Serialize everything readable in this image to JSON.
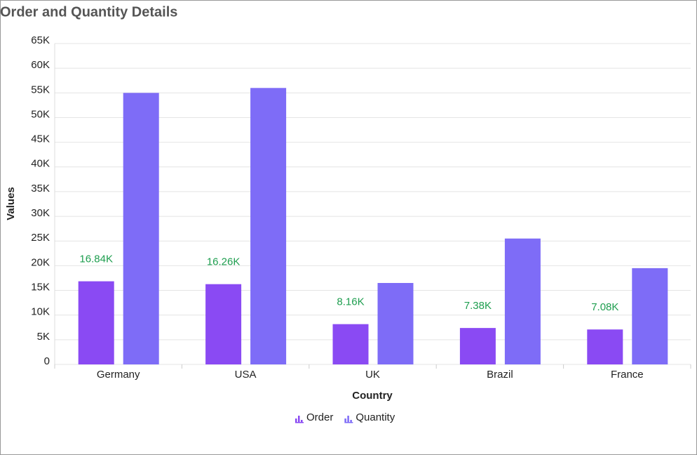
{
  "chart_data": {
    "type": "bar",
    "title": "Order and Quantity Details",
    "x_label": "Country",
    "y_label": "Values",
    "categories": [
      "Germany",
      "USA",
      "UK",
      "Brazil",
      "France"
    ],
    "series": [
      {
        "name": "Order",
        "color": "#8a4af3",
        "values": [
          16840,
          16260,
          8160,
          7380,
          7080
        ],
        "value_labels": [
          "16.84K",
          "16.26K",
          "8.16K",
          "7.38K",
          "7.08K"
        ]
      },
      {
        "name": "Quantity",
        "color": "#7e6cf7",
        "values": [
          55000,
          56000,
          16500,
          25500,
          19500
        ]
      }
    ],
    "value_label_color": "#1e9e4f",
    "ylim": [
      0,
      65000
    ],
    "yticks": [
      {
        "value": 0,
        "label": "0"
      },
      {
        "value": 5000,
        "label": "5K"
      },
      {
        "value": 10000,
        "label": "10K"
      },
      {
        "value": 15000,
        "label": "15K"
      },
      {
        "value": 20000,
        "label": "20K"
      },
      {
        "value": 25000,
        "label": "25K"
      },
      {
        "value": 30000,
        "label": "30K"
      },
      {
        "value": 35000,
        "label": "35K"
      },
      {
        "value": 40000,
        "label": "40K"
      },
      {
        "value": 45000,
        "label": "45K"
      },
      {
        "value": 50000,
        "label": "50K"
      },
      {
        "value": 55000,
        "label": "55K"
      },
      {
        "value": 60000,
        "label": "60K"
      },
      {
        "value": 65000,
        "label": "65K"
      }
    ],
    "grid": true
  }
}
